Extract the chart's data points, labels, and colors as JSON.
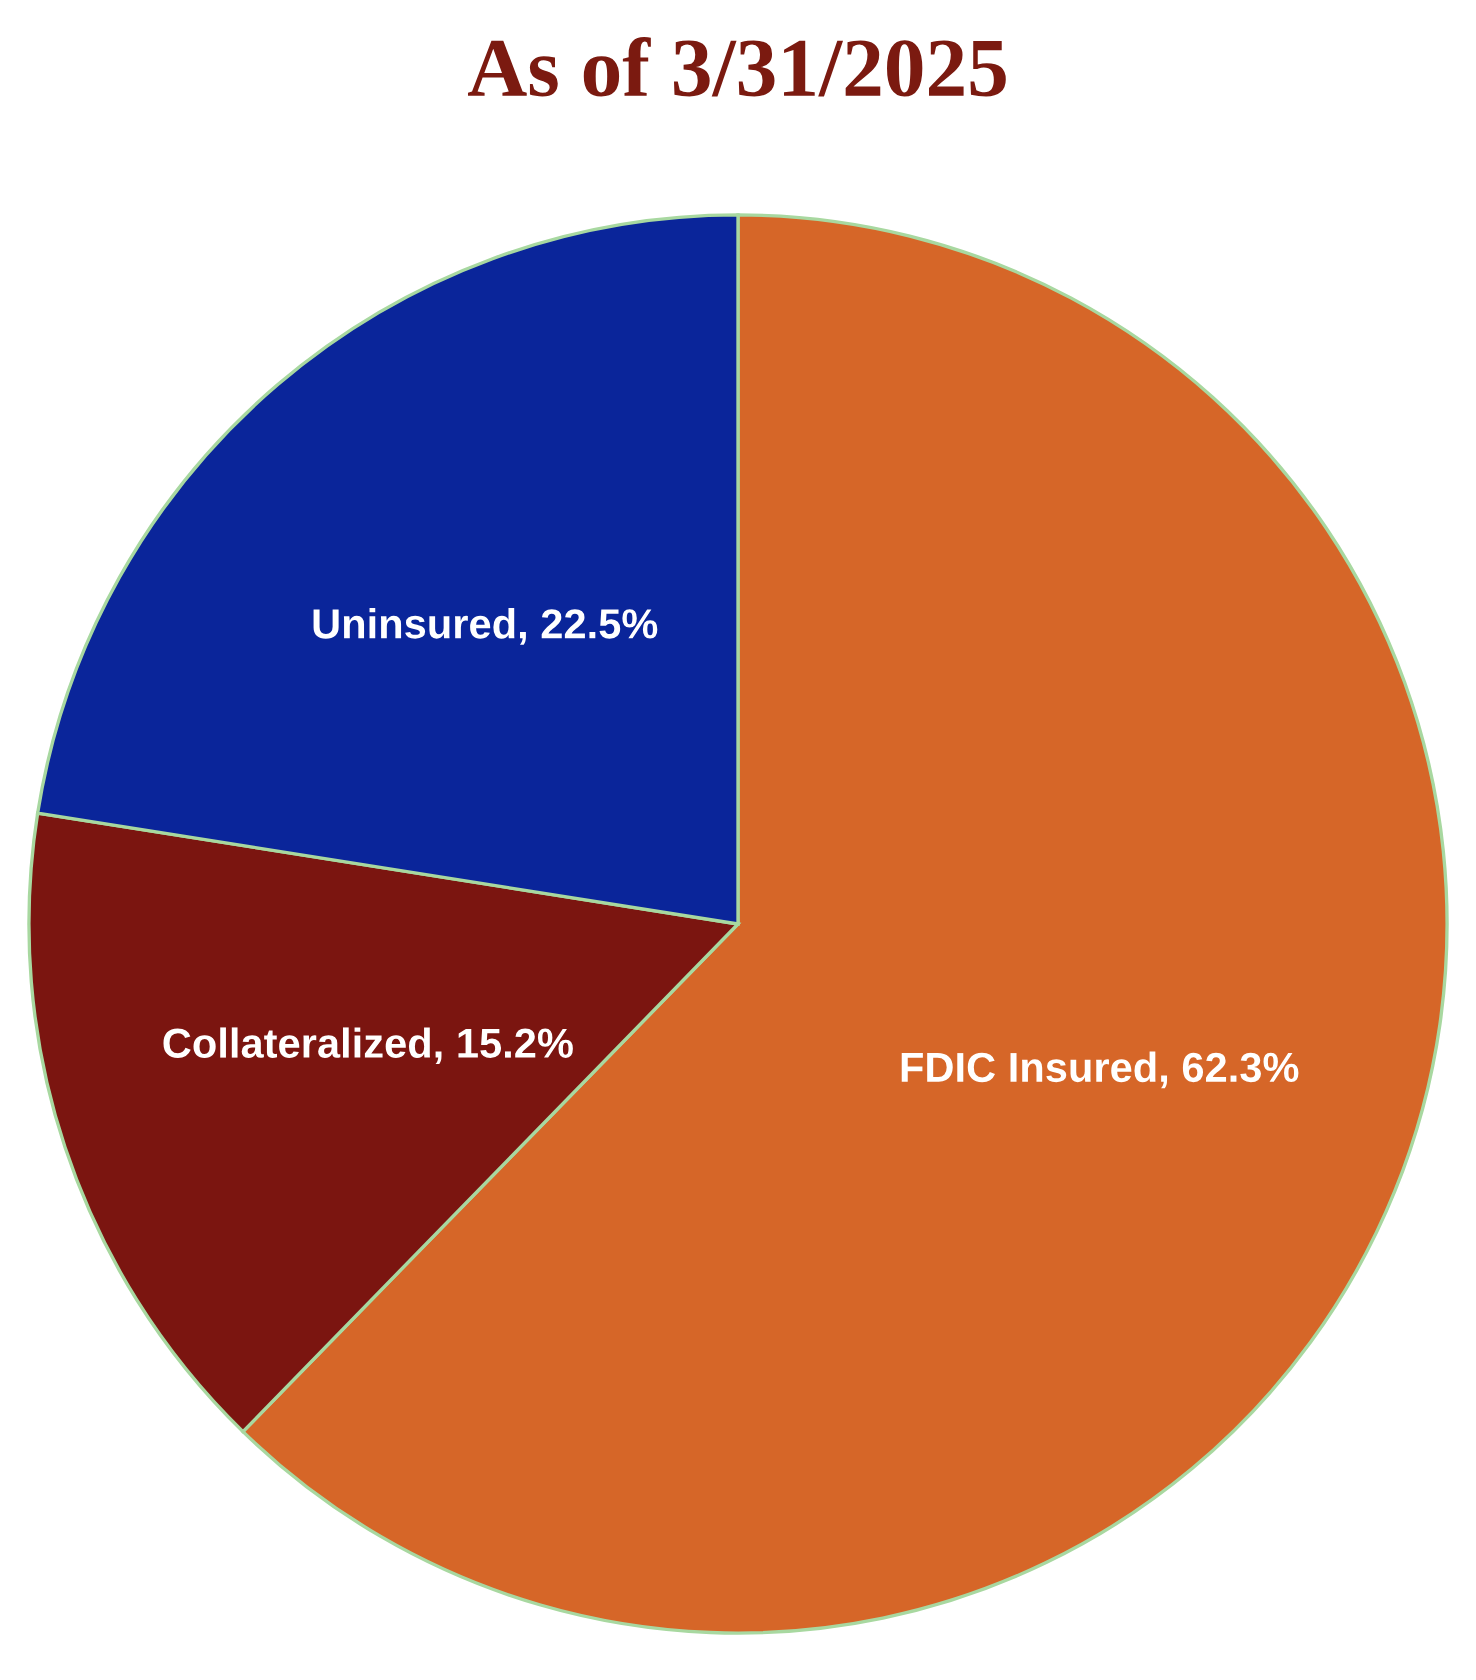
{
  "chart_data": {
    "type": "pie",
    "title": "As of 3/31/2025",
    "categories": [
      "FDIC Insured",
      "Collateralized",
      "Uninsured"
    ],
    "values": [
      62.3,
      15.2,
      22.5
    ],
    "value_labels": [
      "62.3%",
      "15.2%",
      "22.5%"
    ],
    "colors": [
      "#d66628",
      "#7b1510",
      "#0a259a"
    ]
  }
}
